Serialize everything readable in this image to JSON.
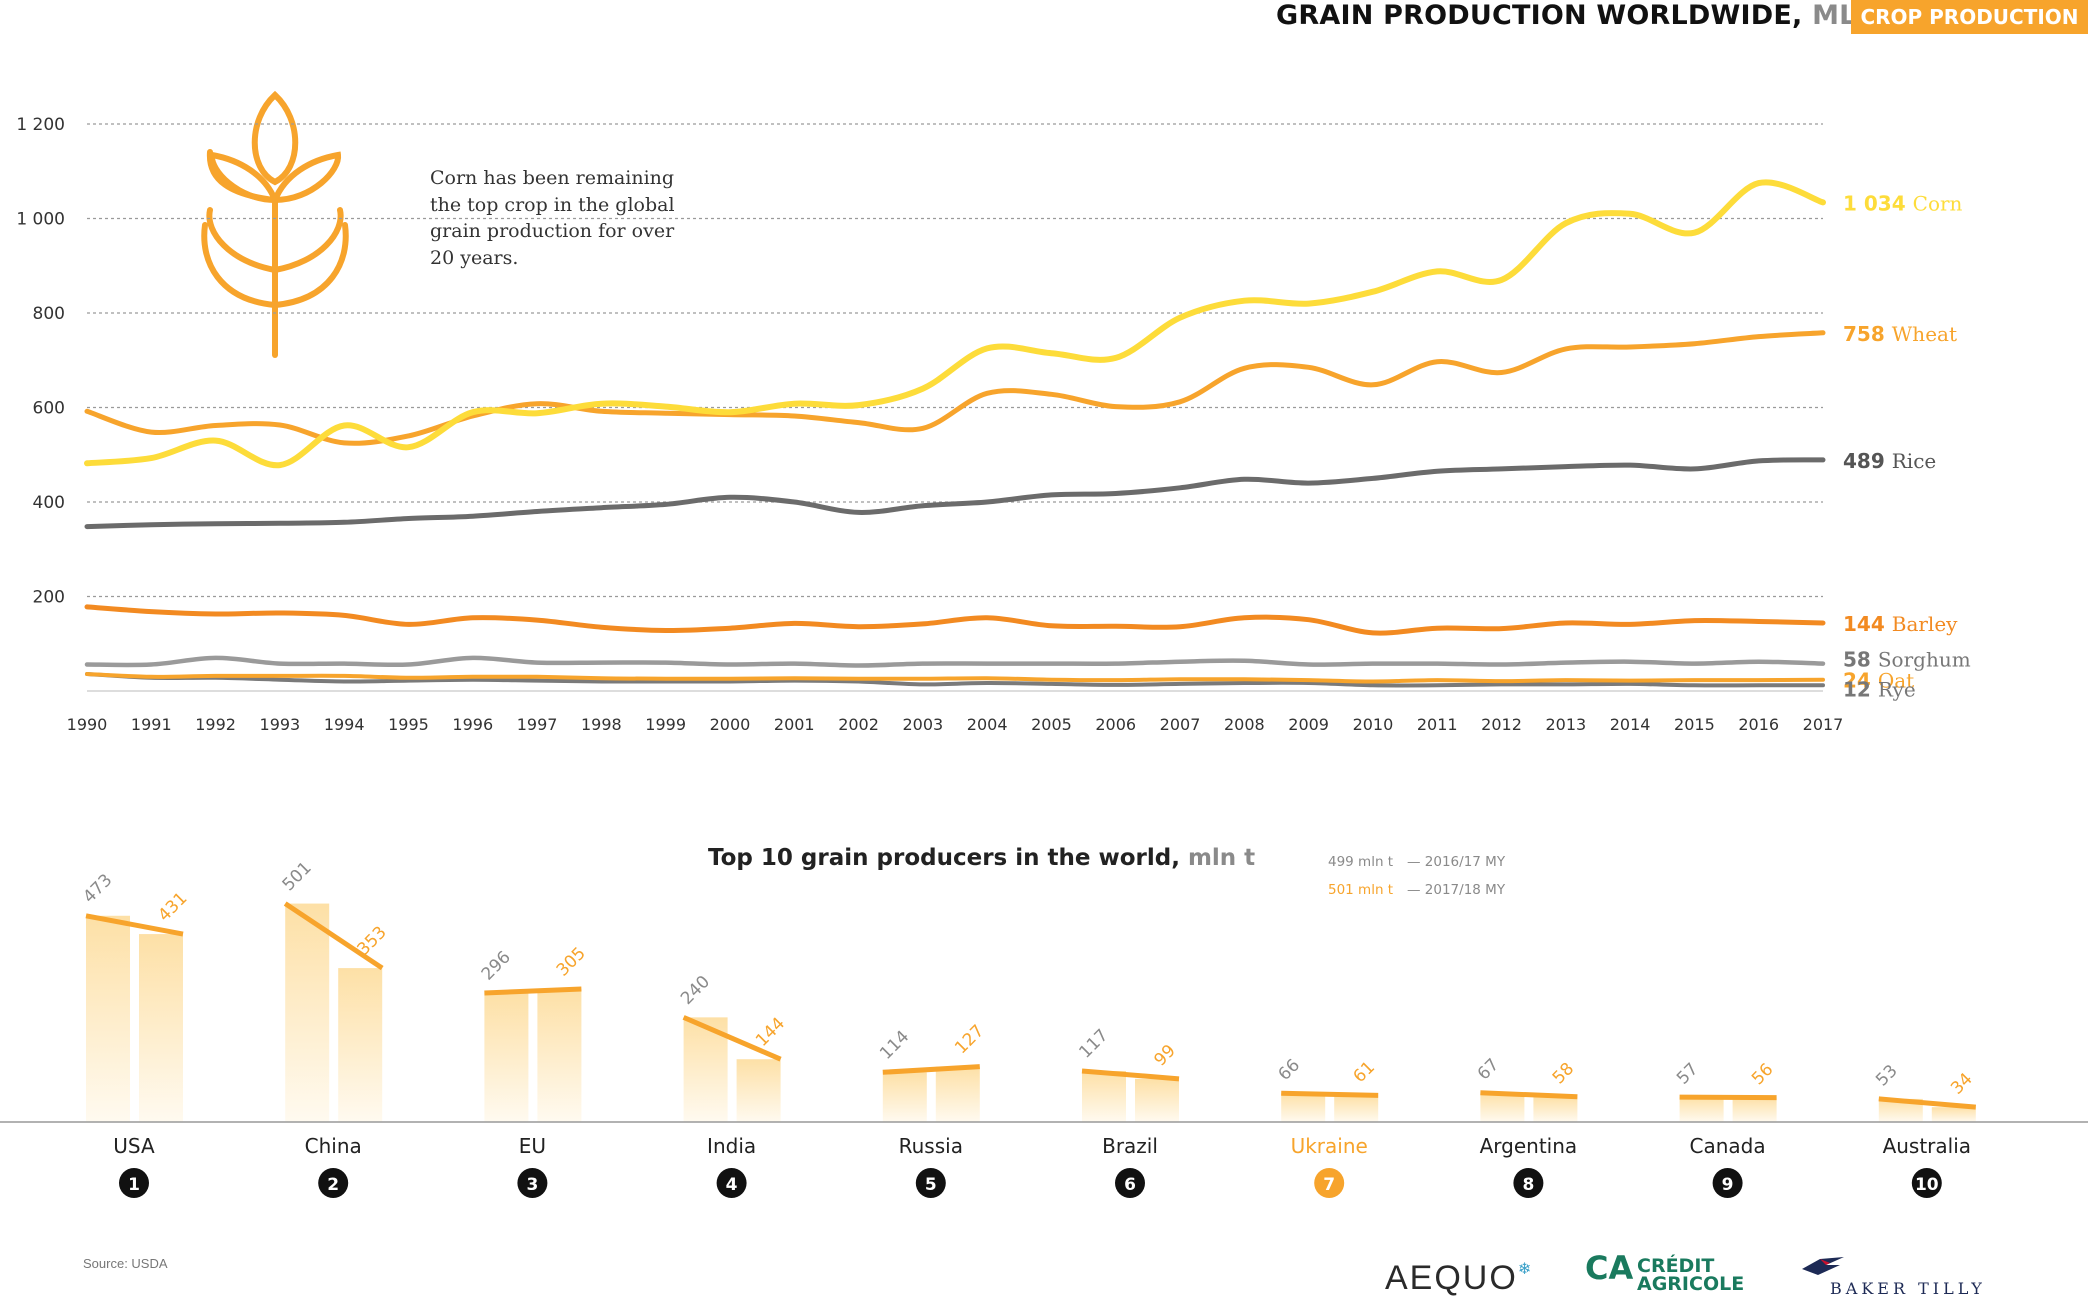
{
  "header": {
    "title": "GRAIN PRODUCTION WORLDWIDE,",
    "unit": "MLN T",
    "tag": "CROP PRODUCTION"
  },
  "note": "Corn has been remaining the top crop in the global grain production for over 20 years.",
  "source": "Source: USDA",
  "colors": {
    "corn": "#fddc3a",
    "wheat": "#f7a42c",
    "rice": "#6b6b6b",
    "barley": "#f28a21",
    "sorghum": "#9a9a9a",
    "oat": "#f7a42c",
    "rye": "#7a7a7a",
    "accent": "#f7a42c",
    "gray_label": "#8a8a8a"
  },
  "logos": {
    "aequo": "AEQUO",
    "ca_line1": "CRÉDIT",
    "ca_line2": "AGRICOLE",
    "baker_tilly": "BAKER TILLY"
  },
  "chart_data": [
    {
      "type": "line",
      "x": [
        1990,
        1991,
        1992,
        1993,
        1994,
        1995,
        1996,
        1997,
        1998,
        1999,
        2000,
        2001,
        2002,
        2003,
        2004,
        2005,
        2006,
        2007,
        2008,
        2009,
        2010,
        2011,
        2012,
        2013,
        2014,
        2015,
        2016,
        2017
      ],
      "y_ticks": [
        "1 200",
        "1 000",
        "800",
        "600",
        "400",
        "200"
      ],
      "y_tick_values": [
        1200,
        1000,
        800,
        600,
        400,
        200
      ],
      "ylim": [
        0,
        1250
      ],
      "grid": true,
      "series": [
        {
          "key": "corn",
          "name": "Corn",
          "end_label": "1 034",
          "values": [
            482,
            493,
            530,
            478,
            562,
            516,
            590,
            588,
            608,
            602,
            590,
            608,
            605,
            640,
            725,
            715,
            705,
            790,
            826,
            820,
            845,
            888,
            870,
            990,
            1010,
            970,
            1075,
            1034
          ]
        },
        {
          "key": "wheat",
          "name": "Wheat",
          "end_label": "758",
          "values": [
            592,
            548,
            562,
            563,
            525,
            540,
            582,
            608,
            592,
            588,
            585,
            582,
            568,
            556,
            630,
            628,
            602,
            612,
            683,
            685,
            648,
            697,
            674,
            724,
            728,
            735,
            750,
            758
          ]
        },
        {
          "key": "rice",
          "name": "Rice",
          "end_label": "489",
          "values": [
            348,
            352,
            354,
            355,
            357,
            365,
            370,
            380,
            388,
            395,
            410,
            400,
            378,
            392,
            400,
            415,
            418,
            430,
            448,
            440,
            450,
            465,
            470,
            475,
            478,
            470,
            487,
            489
          ]
        },
        {
          "key": "barley",
          "name": "Barley",
          "end_label": "144",
          "values": [
            178,
            168,
            163,
            165,
            160,
            141,
            155,
            150,
            135,
            128,
            133,
            143,
            136,
            142,
            155,
            138,
            137,
            136,
            155,
            151,
            123,
            133,
            132,
            144,
            141,
            149,
            147,
            144
          ]
        },
        {
          "key": "sorghum",
          "name": "Sorghum",
          "end_label": "58",
          "values": [
            56,
            56,
            70,
            58,
            58,
            56,
            70,
            60,
            60,
            60,
            56,
            58,
            54,
            58,
            58,
            58,
            58,
            62,
            64,
            56,
            58,
            58,
            56,
            60,
            62,
            58,
            62,
            58
          ]
        },
        {
          "key": "oat",
          "name": "Oat",
          "end_label": "24",
          "values": [
            36,
            30,
            32,
            32,
            32,
            28,
            30,
            30,
            27,
            26,
            26,
            27,
            26,
            26,
            27,
            24,
            23,
            25,
            25,
            23,
            20,
            23,
            21,
            23,
            22,
            23,
            23,
            24
          ]
        },
        {
          "key": "rye",
          "name": "Rye",
          "end_label": "12",
          "values": [
            36,
            28,
            28,
            24,
            20,
            22,
            24,
            22,
            20,
            20,
            20,
            22,
            20,
            14,
            17,
            15,
            13,
            15,
            17,
            17,
            12,
            12,
            14,
            14,
            15,
            12,
            12,
            12
          ]
        }
      ]
    },
    {
      "type": "bar",
      "title": "Top 10 grain producers in the world,",
      "title_unit": "mln t",
      "legend": [
        {
          "value": "499 mln t",
          "label": "— 2016/17 MY"
        },
        {
          "value": "501 mln t",
          "label": "— 2017/18 MY"
        }
      ],
      "categories": [
        "USA",
        "China",
        "EU",
        "India",
        "Russia",
        "Brazil",
        "Ukraine",
        "Argentina",
        "Canada",
        "Australia"
      ],
      "ranks": [
        "1",
        "2",
        "3",
        "4",
        "5",
        "6",
        "7",
        "8",
        "9",
        "10"
      ],
      "highlight": "Ukraine",
      "series": [
        {
          "name": "2016/17 MY",
          "values": [
            473,
            501,
            296,
            240,
            114,
            117,
            66,
            67,
            57,
            53
          ]
        },
        {
          "name": "2017/18 MY",
          "values": [
            431,
            353,
            305,
            144,
            127,
            99,
            61,
            58,
            56,
            34
          ]
        }
      ]
    }
  ]
}
